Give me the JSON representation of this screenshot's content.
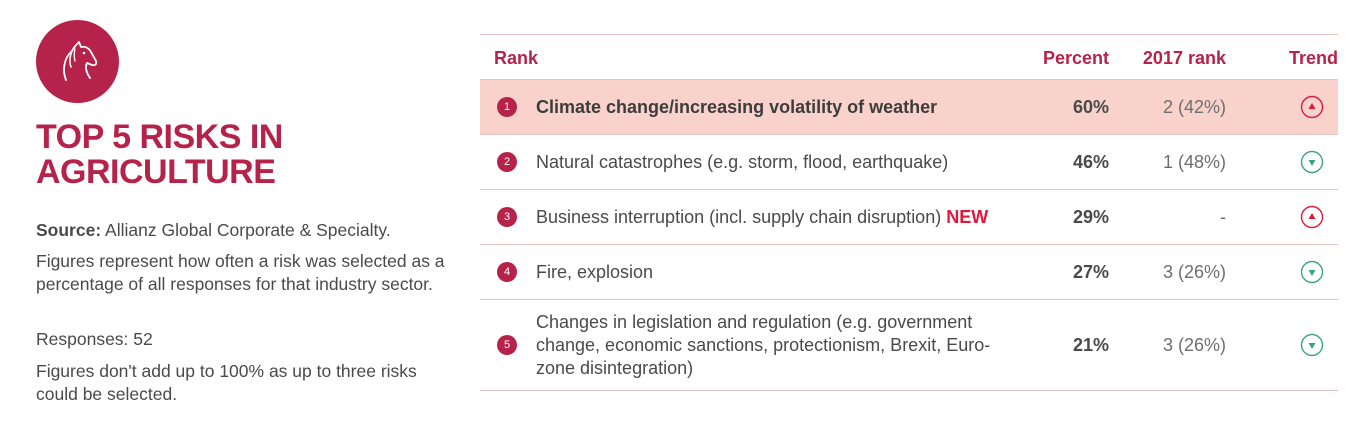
{
  "header": {
    "title": "TOP 5 RISKS IN AGRICULTURE",
    "logo_icon": "horse-head-icon",
    "accent_color": "#b6234a"
  },
  "sidebar": {
    "source_label": "Source:",
    "source_text": " Allianz Global Corporate & Specialty.",
    "description": "Figures represent how often a risk was selected as a percentage of all responses for that industry sector.",
    "responses": "Responses: 52",
    "note": "Figures don't add up to 100% as up to three risks could be selected."
  },
  "chart_data": {
    "type": "table",
    "columns": [
      "Rank",
      "Percent",
      "2017 rank",
      "Trend"
    ],
    "rows": [
      {
        "rank": "1",
        "risk": "Climate change/increasing volatility of weather",
        "new": "",
        "percent": "60%",
        "rank_2017": "2 (42%)",
        "trend": "up",
        "highlighted": true
      },
      {
        "rank": "2",
        "risk": "Natural catastrophes (e.g. storm, flood, earthquake)",
        "new": "",
        "percent": "46%",
        "rank_2017": "1 (48%)",
        "trend": "down",
        "highlighted": false
      },
      {
        "rank": "3",
        "risk": "Business interruption (incl. supply chain disruption)",
        "new": "NEW",
        "percent": "29%",
        "rank_2017": "-",
        "trend": "up",
        "highlighted": false
      },
      {
        "rank": "4",
        "risk": "Fire, explosion",
        "new": "",
        "percent": "27%",
        "rank_2017": "3 (26%)",
        "trend": "down",
        "highlighted": false
      },
      {
        "rank": "5",
        "risk": "Changes in legislation and regulation (e.g. government change, economic sanctions, protectionism, Brexit, Euro-zone disintegration)",
        "new": "",
        "percent": "21%",
        "rank_2017": "3 (26%)",
        "trend": "down",
        "highlighted": false
      }
    ],
    "trend_colors": {
      "up": "#e0193c",
      "down": "#3aa57a"
    }
  }
}
